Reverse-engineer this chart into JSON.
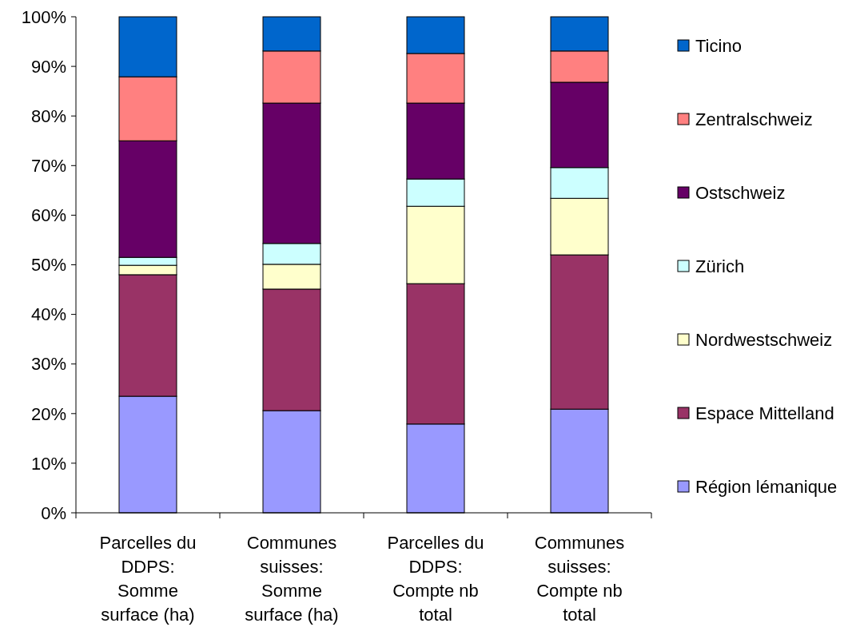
{
  "chart_data": {
    "type": "bar",
    "stacked": true,
    "categories": [
      "Parcelles du\nDDPS:\nSomme\nsurface (ha)",
      "Communes\nsuisses:\nSomme\nsurface (ha)",
      "Parcelles du\nDDPS:\nCompte nb\ntotal",
      "Communes\nsuisses:\nCompte nb\ntotal"
    ],
    "series": [
      {
        "name": "Région lémanique",
        "color": "#9999ff",
        "values": [
          23.5,
          20.6,
          17.9,
          20.9
        ]
      },
      {
        "name": "Espace Mittelland",
        "color": "#993366",
        "values": [
          24.5,
          24.5,
          28.3,
          31.1
        ]
      },
      {
        "name": "Nordwestschweiz",
        "color": "#ffffcc",
        "values": [
          1.9,
          5.0,
          15.6,
          11.4
        ]
      },
      {
        "name": "Zürich",
        "color": "#ccffff",
        "values": [
          1.6,
          4.2,
          5.5,
          6.2
        ]
      },
      {
        "name": "Ostschweiz",
        "color": "#660066",
        "values": [
          23.5,
          28.3,
          15.3,
          17.2
        ]
      },
      {
        "name": "Zentralschweiz",
        "color": "#ff8080",
        "values": [
          12.9,
          10.5,
          10.0,
          6.3
        ]
      },
      {
        "name": "Ticino",
        "color": "#0066cc",
        "values": [
          12.1,
          6.9,
          7.4,
          6.9
        ]
      }
    ],
    "ylim": [
      0,
      100
    ],
    "yticks": [
      {
        "value": 0,
        "label": "0%"
      },
      {
        "value": 10,
        "label": "10%"
      },
      {
        "value": 20,
        "label": "20%"
      },
      {
        "value": 30,
        "label": "30%"
      },
      {
        "value": 40,
        "label": "40%"
      },
      {
        "value": 50,
        "label": "50%"
      },
      {
        "value": 60,
        "label": "60%"
      },
      {
        "value": 70,
        "label": "70%"
      },
      {
        "value": 80,
        "label": "80%"
      },
      {
        "value": 90,
        "label": "90%"
      },
      {
        "value": 100,
        "label": "100%"
      }
    ],
    "grid": false,
    "legend": "right"
  }
}
